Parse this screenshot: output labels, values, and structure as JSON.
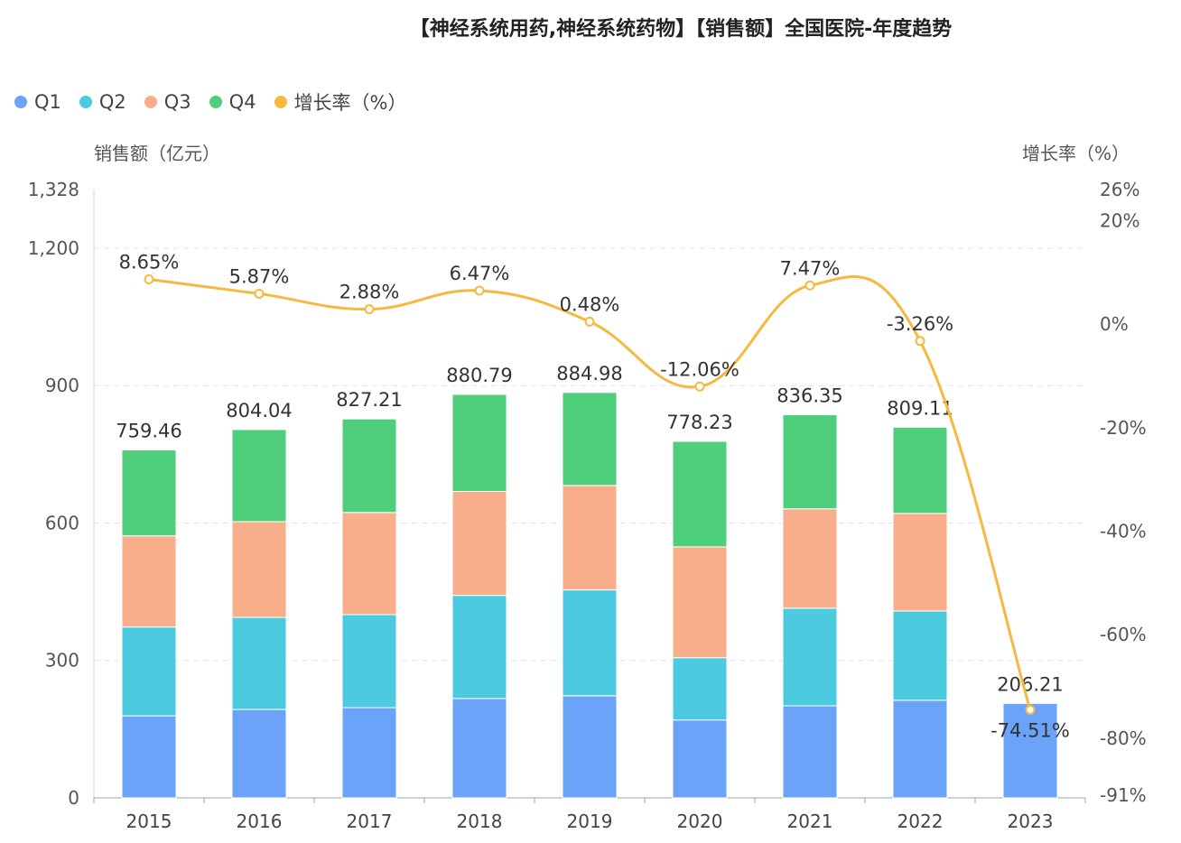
{
  "chart_data": {
    "type": "bar",
    "title": "【神经系统用药,神经系统药物】【销售额】全国医院-年度趋势",
    "ylabel": "销售额（亿元）",
    "y2label": "增长率（%）",
    "categories": [
      "2015",
      "2016",
      "2017",
      "2018",
      "2019",
      "2020",
      "2021",
      "2022",
      "2023"
    ],
    "stacked": true,
    "series": [
      {
        "name": "Q1",
        "type": "bar",
        "color": "#6aa3f8",
        "values": [
          179,
          193,
          197,
          217,
          223,
          170,
          201,
          213,
          206.21
        ]
      },
      {
        "name": "Q2",
        "type": "bar",
        "color": "#4ccbe0",
        "values": [
          194,
          201,
          203,
          225,
          231,
          136,
          213,
          195,
          null
        ]
      },
      {
        "name": "Q3",
        "type": "bar",
        "color": "#f9ae8b",
        "values": [
          199,
          209,
          223,
          227,
          228,
          242,
          217,
          213,
          null
        ]
      },
      {
        "name": "Q4",
        "type": "bar",
        "color": "#4fcf7c",
        "values": [
          187.46,
          201.04,
          204.21,
          211.79,
          202.98,
          230.23,
          205.35,
          188.11,
          null
        ]
      },
      {
        "name": "增长率（%）",
        "type": "line",
        "axis": "right",
        "color": "#f5b93f",
        "values": [
          8.65,
          5.87,
          2.88,
          6.47,
          0.48,
          -12.06,
          7.47,
          -3.26,
          -74.51
        ]
      }
    ],
    "totals": [
      "759.46",
      "804.04",
      "827.21",
      "880.79",
      "884.98",
      "778.23",
      "836.35",
      "809.11",
      "206.21"
    ],
    "growth_labels": [
      "8.65%",
      "5.87%",
      "2.88%",
      "6.47%",
      "0.48%",
      "-12.06%",
      "7.47%",
      "-3.26%",
      "-74.51%"
    ],
    "ylim": [
      0,
      1328
    ],
    "yticks": [
      "0",
      "300",
      "600",
      "900",
      "1,200",
      "1,328"
    ],
    "ytick_values": [
      0,
      300,
      600,
      900,
      1200,
      1328
    ],
    "y2lim": [
      -91,
      26
    ],
    "y2ticks": [
      "-91%",
      "-80%",
      "-60%",
      "-40%",
      "-20%",
      "0%",
      "20%",
      "26%"
    ],
    "y2tick_values": [
      -91,
      -80,
      -60,
      -40,
      -20,
      0,
      20,
      26
    ],
    "grid": true,
    "legend_position": "top-left"
  }
}
